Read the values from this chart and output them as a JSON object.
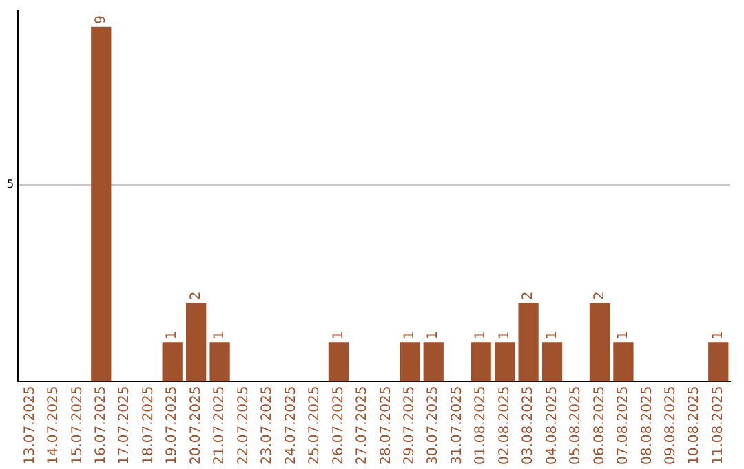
{
  "chart_data": {
    "type": "bar",
    "categories": [
      "13.07.2025",
      "14.07.2025",
      "15.07.2025",
      "16.07.2025",
      "17.07.2025",
      "18.07.2025",
      "19.07.2025",
      "20.07.2025",
      "21.07.2025",
      "22.07.2025",
      "23.07.2025",
      "24.07.2025",
      "25.07.2025",
      "26.07.2025",
      "27.07.2025",
      "28.07.2025",
      "29.07.2025",
      "30.07.2025",
      "31.07.2025",
      "01.08.2025",
      "02.08.2025",
      "03.08.2025",
      "04.08.2025",
      "05.08.2025",
      "06.08.2025",
      "07.08.2025",
      "08.08.2025",
      "09.08.2025",
      "10.08.2025",
      "11.08.2025"
    ],
    "values": [
      0,
      0,
      0,
      9,
      0,
      0,
      1,
      2,
      1,
      0,
      0,
      0,
      0,
      1,
      0,
      0,
      1,
      1,
      0,
      1,
      1,
      2,
      1,
      0,
      2,
      1,
      0,
      0,
      0,
      1
    ],
    "value_labels": [
      null,
      null,
      null,
      "9",
      null,
      null,
      "1",
      "2",
      "1",
      null,
      null,
      null,
      null,
      "1",
      null,
      null,
      "1",
      "1",
      null,
      "1",
      "1",
      "2",
      "1",
      null,
      "2",
      "1",
      null,
      null,
      null,
      "1"
    ],
    "color": "#a0522d",
    "ylim": [
      0,
      9.4
    ],
    "yticks": [
      5
    ],
    "grid": "y",
    "legend": false
  }
}
